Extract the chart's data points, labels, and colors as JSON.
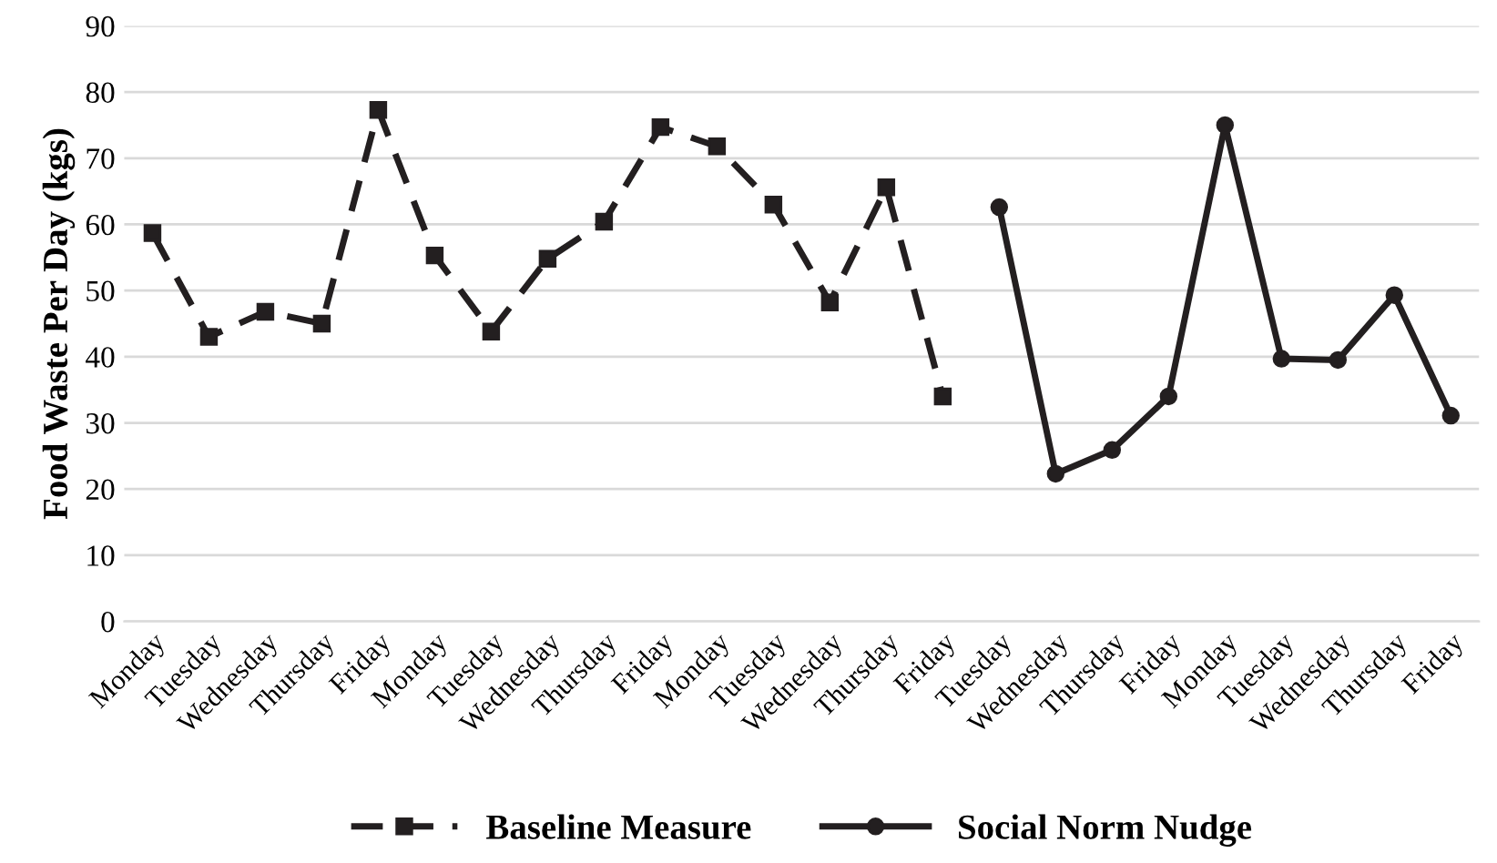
{
  "chart_data": {
    "type": "line",
    "ylabel": "Food Waste Per Day (kgs)",
    "categories": [
      "Monday",
      "Tuesday",
      "Wednesday",
      "Thursday",
      "Friday",
      "Monday",
      "Tuesday",
      "Wednesday",
      "Thursday",
      "Friday",
      "Monday",
      "Tuesday",
      "Wednesday",
      "Thursday",
      "Friday",
      "Tuesday",
      "Wednesday",
      "Thursday",
      "Friday",
      "Monday",
      "Tuesday",
      "Wednesday",
      "Thursday",
      "Friday"
    ],
    "series": [
      {
        "name": "Baseline Measure",
        "color": "#231f20",
        "marker": "square",
        "line_style": "dashed",
        "values": [
          58.7,
          43,
          46.8,
          45,
          77.3,
          55.3,
          43.8,
          54.8,
          60.4,
          74.7,
          71.8,
          63,
          48.2,
          65.6,
          34,
          null,
          null,
          null,
          null,
          null,
          null,
          null,
          null,
          null
        ]
      },
      {
        "name": "Social Norm Nudge",
        "color": "#231f20",
        "marker": "circle",
        "line_style": "solid",
        "values": [
          null,
          null,
          null,
          null,
          null,
          null,
          null,
          null,
          null,
          null,
          null,
          null,
          null,
          null,
          null,
          62.6,
          22.3,
          25.9,
          34,
          75,
          39.7,
          39.5,
          49.3,
          31.1
        ]
      }
    ],
    "ylim": [
      0,
      90
    ],
    "yticks": [
      0,
      10,
      20,
      30,
      40,
      50,
      60,
      70,
      80,
      90
    ],
    "grid": "y",
    "legend": "bottom"
  }
}
